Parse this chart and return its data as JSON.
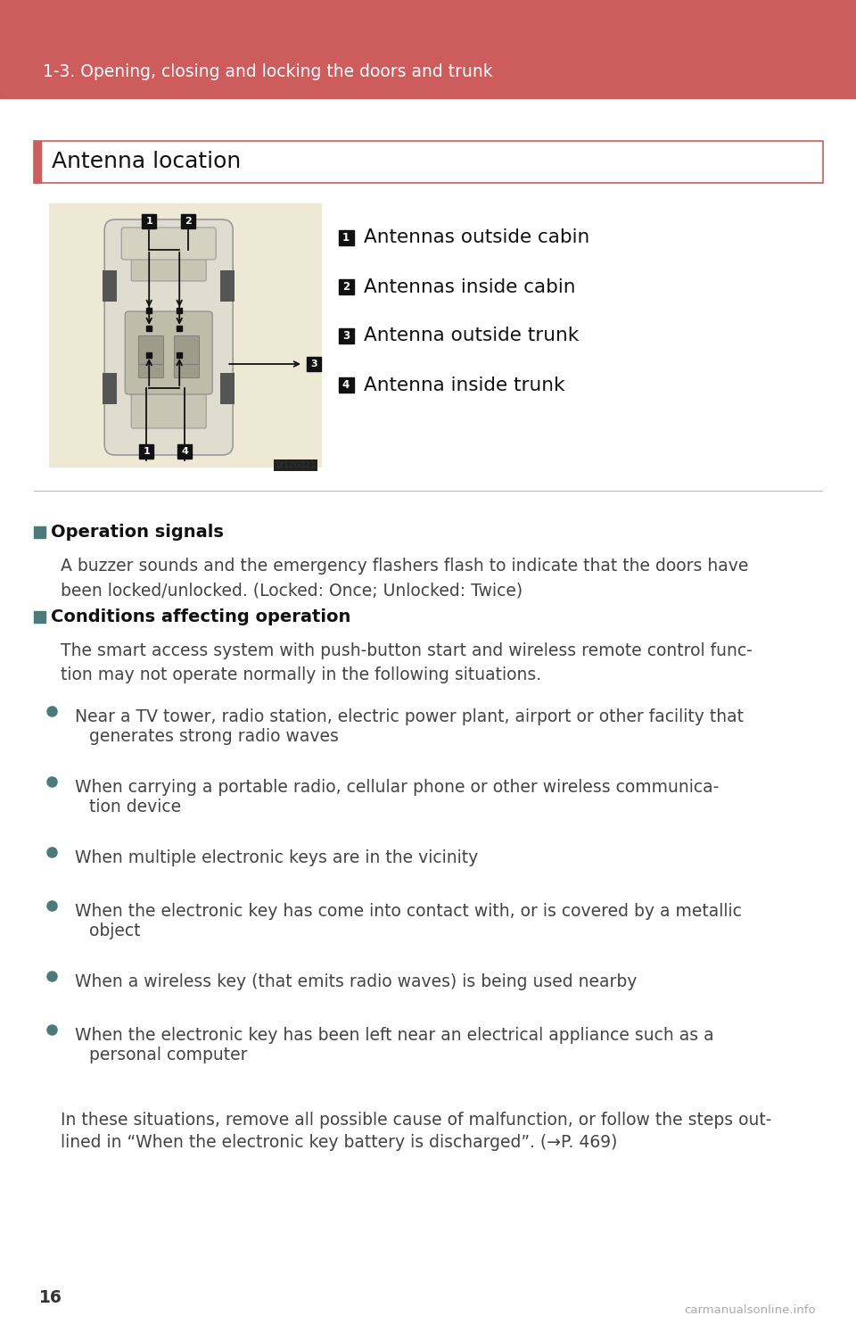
{
  "header_color": "#CD5C5C",
  "header_text": "1-3. Opening, closing and locking the doors and trunk",
  "header_text_color": "#FFFFFF",
  "section_title": "Antenna location",
  "section_title_color": "#CD5C5C",
  "bg_color": "#FFFFFF",
  "body_text_color": "#444444",
  "bullet_color": "#4A7A7A",
  "page_number": "16",
  "car_bg_color": "#EDE9D5",
  "numbered_label_bg": "#111111",
  "numbered_label_fg": "#FFFFFF",
  "antenna_items": [
    {
      "num": "1",
      "text": "Antennas outside cabin"
    },
    {
      "num": "2",
      "text": "Antennas inside cabin"
    },
    {
      "num": "3",
      "text": "Antenna outside trunk"
    },
    {
      "num": "4",
      "text": "Antenna inside trunk"
    }
  ],
  "operation_signals_title": "Operation signals",
  "operation_signals_body": "A buzzer sounds and the emergency flashers flash to indicate that the doors have\nbeen locked/unlocked. (Locked: Once; Unlocked: Twice)",
  "conditions_title": "Conditions affecting operation",
  "conditions_intro": "The smart access system with push-button start and wireless remote control func-\ntion may not operate normally in the following situations.",
  "bullet_items": [
    [
      "Near a TV tower, radio station, electric power plant, airport or other facility that",
      "generates strong radio waves"
    ],
    [
      "When carrying a portable radio, cellular phone or other wireless communica-",
      "tion device"
    ],
    [
      "When multiple electronic keys are in the vicinity"
    ],
    [
      "When the electronic key has come into contact with, or is covered by a metallic",
      "object"
    ],
    [
      "When a wireless key (that emits radio waves) is being used nearby"
    ],
    [
      "When the electronic key has been left near an electrical appliance such as a",
      "personal computer"
    ]
  ],
  "footer_line1": "In these situations, remove all possible cause of malfunction, or follow the steps out-",
  "footer_line2": "lined in “When the electronic key battery is discharged”. (→P. 469)",
  "watermark": "carmanualsonline.info"
}
